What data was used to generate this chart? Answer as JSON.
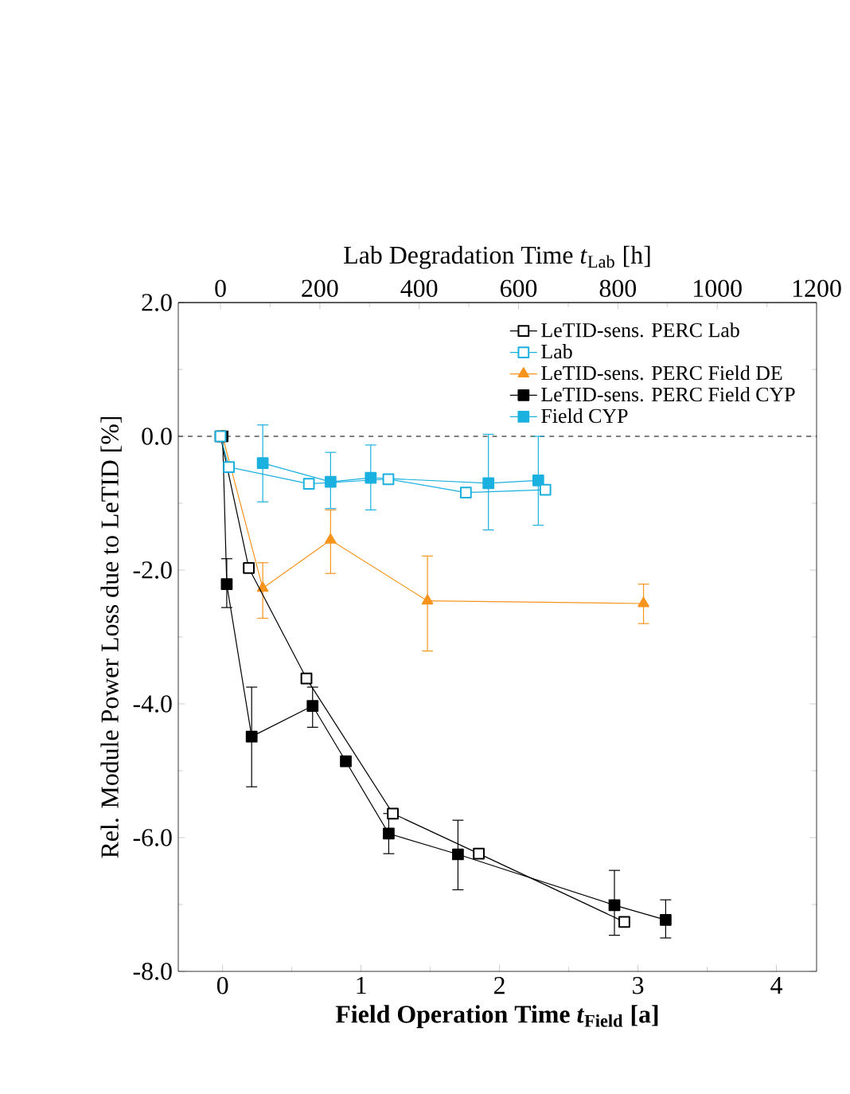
{
  "chart_data": {
    "type": "line",
    "xlabel": "Field Operation Time *t*$_{Field}$ [a]",
    "x2label": "Lab Degradation Time *t*$_{Lab}$ [h]",
    "ylabel": "Rel. Module Power Loss due to LeTID [%]",
    "xlim": [
      -0.32,
      4.29
    ],
    "xticks": [
      0,
      1,
      2,
      3,
      4
    ],
    "x2lim": [
      -85,
      1200
    ],
    "x2ticks": [
      0,
      200,
      400,
      600,
      800,
      1000,
      1200
    ],
    "ylim": [
      -8,
      2
    ],
    "yticks": [
      {
        "value": -8,
        "label": "-8.0"
      },
      {
        "value": -6,
        "label": "-6.0"
      },
      {
        "value": -4,
        "label": "-4.0"
      },
      {
        "value": -2,
        "label": "-2.0"
      },
      {
        "value": 0,
        "label": "0.0"
      },
      {
        "value": 2,
        "label": "2.0"
      }
    ],
    "legend": "top right",
    "grid": false,
    "ref_lines": [
      {
        "axis": "y",
        "value": 0,
        "line_style": "dashed",
        "color": "#000000"
      }
    ],
    "series": [
      {
        "name": "LeTID-sens. PERC Lab",
        "color": "#000000",
        "axis": "x2",
        "marker": "square",
        "x": [
          0,
          57,
          173,
          347,
          520,
          813
        ],
        "values": [
          0,
          -1.97,
          -3.62,
          -5.64,
          -6.24,
          -7.26
        ]
      },
      {
        "name": "Lab",
        "color": "#1ab0e0",
        "axis": "x2",
        "marker": "square",
        "x": [
          0,
          17,
          178,
          338,
          494,
          654
        ],
        "values": [
          0,
          -0.46,
          -0.71,
          -0.64,
          -0.84,
          -0.8
        ]
      },
      {
        "name": "LeTID-sens. PERC Field DE",
        "color": "#f7941d",
        "marker": "triangle",
        "x": [
          0,
          0.29,
          0.78,
          1.48,
          3.04
        ],
        "values": [
          0,
          -2.27,
          -1.55,
          -2.46,
          -2.5
        ],
        "errors": [
          null,
          [
            -2.72,
            -1.89
          ],
          [
            -2.05,
            -1.1
          ],
          [
            -3.21,
            -1.79
          ],
          [
            -2.8,
            -2.21
          ]
        ]
      },
      {
        "name": "LeTID-sens. PERC Field CYP",
        "color": "#000000",
        "marker": "square",
        "x": [
          0,
          0.03,
          0.21,
          0.65,
          0.89,
          1.2,
          1.7,
          2.83,
          3.2
        ],
        "values": [
          0,
          -2.21,
          -4.49,
          -4.03,
          -4.86,
          -5.94,
          -6.25,
          -7.01,
          -7.23
        ],
        "errors": [
          null,
          [
            -2.56,
            -1.83
          ],
          [
            -5.24,
            -3.75
          ],
          [
            -4.35,
            -3.75
          ],
          null,
          [
            -6.24,
            -5.64
          ],
          [
            -6.78,
            -5.74
          ],
          [
            -7.46,
            -6.49
          ],
          [
            -7.5,
            -6.93
          ]
        ]
      },
      {
        "name": "Field CYP",
        "color": "#1ab0e0",
        "marker": "square",
        "x": [
          0.29,
          0.78,
          1.07,
          1.92,
          2.28
        ],
        "values": [
          -0.4,
          -0.68,
          -0.62,
          -0.7,
          -0.66
        ],
        "errors": [
          [
            -0.98,
            0.17
          ],
          [
            -1.08,
            -0.24
          ],
          [
            -1.1,
            -0.13
          ],
          [
            -1.4,
            0.03
          ],
          [
            -1.33,
            0
          ]
        ]
      }
    ]
  }
}
